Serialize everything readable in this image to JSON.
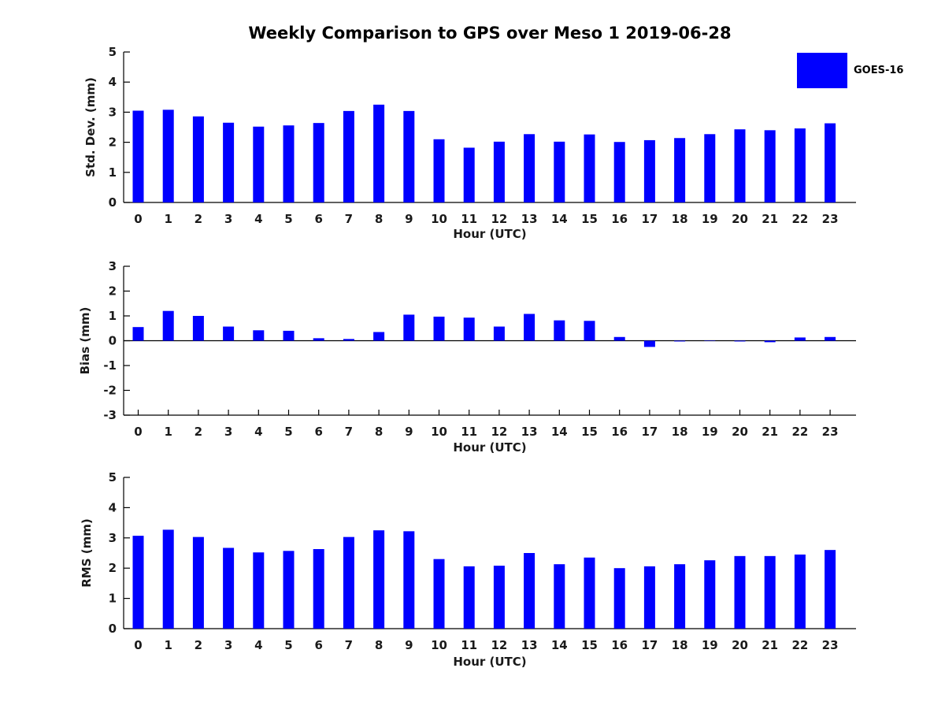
{
  "title": "Weekly Comparison to GPS over Meso 1 2019-06-28",
  "legend": {
    "label": "GOES-16",
    "color": "#0000FF"
  },
  "bar_color": "#0000FF",
  "axis_color": "#000000",
  "chart_data": [
    {
      "type": "bar",
      "title": "",
      "xlabel": "Hour (UTC)",
      "ylabel": "Std. Dev. (mm)",
      "categories": [
        "0",
        "1",
        "2",
        "3",
        "4",
        "5",
        "6",
        "7",
        "8",
        "9",
        "10",
        "11",
        "12",
        "13",
        "14",
        "15",
        "16",
        "17",
        "18",
        "19",
        "20",
        "21",
        "22",
        "23"
      ],
      "values": [
        3.05,
        3.08,
        2.86,
        2.65,
        2.52,
        2.56,
        2.64,
        3.04,
        3.25,
        3.04,
        2.1,
        1.82,
        2.02,
        2.27,
        2.02,
        2.26,
        2.01,
        2.07,
        2.14,
        2.27,
        2.43,
        2.4,
        2.46,
        2.63
      ],
      "ylim": [
        0,
        5
      ],
      "yticks": [
        0,
        1,
        2,
        3,
        4,
        5
      ],
      "grid": false,
      "series_name": "GOES-16"
    },
    {
      "type": "bar",
      "title": "",
      "xlabel": "Hour (UTC)",
      "ylabel": "Bias (mm)",
      "categories": [
        "0",
        "1",
        "2",
        "3",
        "4",
        "5",
        "6",
        "7",
        "8",
        "9",
        "10",
        "11",
        "12",
        "13",
        "14",
        "15",
        "16",
        "17",
        "18",
        "19",
        "20",
        "21",
        "22",
        "23"
      ],
      "values": [
        0.55,
        1.2,
        1.0,
        0.57,
        0.42,
        0.4,
        0.1,
        0.07,
        0.35,
        1.05,
        0.97,
        0.93,
        0.57,
        1.08,
        0.82,
        0.8,
        0.15,
        -0.25,
        -0.03,
        -0.01,
        -0.03,
        -0.06,
        0.13,
        0.15
      ],
      "ylim": [
        -3,
        3
      ],
      "yticks": [
        -3,
        -2,
        -1,
        0,
        1,
        2,
        3
      ],
      "grid": false,
      "series_name": "GOES-16"
    },
    {
      "type": "bar",
      "title": "",
      "xlabel": "Hour (UTC)",
      "ylabel": "RMS (mm)",
      "categories": [
        "0",
        "1",
        "2",
        "3",
        "4",
        "5",
        "6",
        "7",
        "8",
        "9",
        "10",
        "11",
        "12",
        "13",
        "14",
        "15",
        "16",
        "17",
        "18",
        "19",
        "20",
        "21",
        "22",
        "23"
      ],
      "values": [
        3.07,
        3.27,
        3.03,
        2.67,
        2.52,
        2.57,
        2.63,
        3.03,
        3.25,
        3.22,
        2.3,
        2.06,
        2.08,
        2.5,
        2.13,
        2.35,
        2.0,
        2.06,
        2.13,
        2.26,
        2.4,
        2.4,
        2.45,
        2.6
      ],
      "ylim": [
        0,
        5
      ],
      "yticks": [
        0,
        1,
        2,
        3,
        4,
        5
      ],
      "grid": false,
      "series_name": "GOES-16"
    }
  ]
}
